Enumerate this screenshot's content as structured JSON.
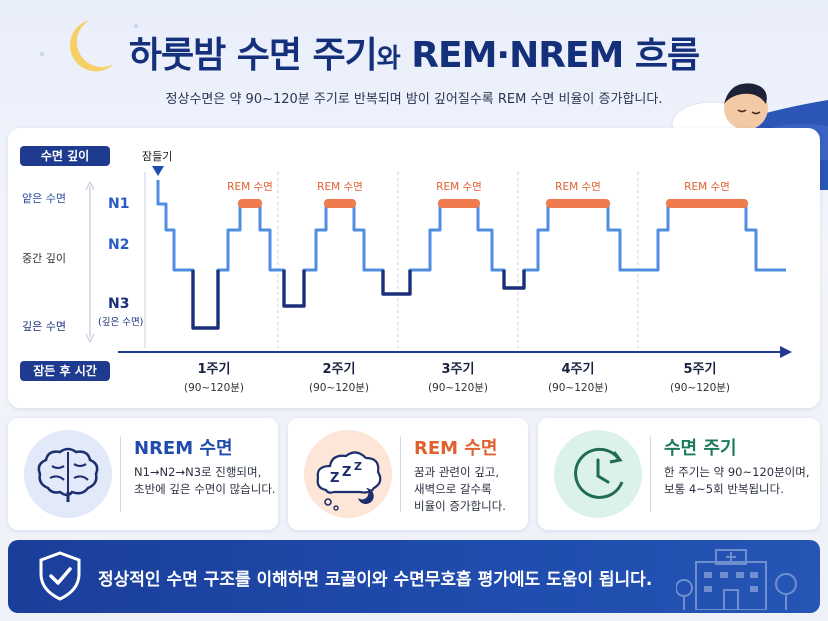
{
  "header": {
    "title_main": "하룻밤 수면 주기",
    "title_small": "와",
    "title_end": " REM·NREM 흐름",
    "subtitle": "정상수면은 약 90~120분 주기로 반복되며 밤이 깊어질수록 REM 수면 비율이 증가합니다."
  },
  "chart": {
    "y_axis_badge": "수면 깊이",
    "x_axis_badge": "잠든 후 시간",
    "depth_labels": [
      "얕은 수면",
      "중간 깊이",
      "깊은 수면"
    ],
    "stage_labels": [
      "N1",
      "N2",
      "N3"
    ],
    "n3_sub": "(깊은 수면)",
    "sleep_onset_label": "잠들기",
    "rem_label": "REM 수면",
    "cycles": [
      {
        "label": "1주기",
        "sub": "(90~120분)"
      },
      {
        "label": "2주기",
        "sub": "(90~120분)"
      },
      {
        "label": "3주기",
        "sub": "(90~120분)"
      },
      {
        "label": "4주기",
        "sub": "(90~120분)"
      },
      {
        "label": "5주기",
        "sub": "(90~120분)"
      }
    ],
    "colors": {
      "light": "#4f8de0",
      "deep": "#1a2f7a",
      "rem": "#ef7a4e",
      "axis": "#1f3b8f"
    }
  },
  "cards": {
    "nrem": {
      "title": "NREM 수면",
      "lines": [
        "N1→N2→N3로 진행되며,",
        "초반에 깊은 수면이 많습니다."
      ]
    },
    "rem": {
      "title": "REM 수면",
      "lines": [
        "꿈과 관련이 깊고,",
        "새벽으로 갈수록",
        "비율이 증가합니다."
      ]
    },
    "cycle": {
      "title": "수면 주기",
      "lines": [
        "한 주기는 약 90~120분이며,",
        "보통 4~5회 반복됩니다."
      ]
    }
  },
  "banner": {
    "text": "정상적인 수면 구조를 이해하면 코골이와 수면무호흡 평가에도 도움이 됩니다."
  }
}
